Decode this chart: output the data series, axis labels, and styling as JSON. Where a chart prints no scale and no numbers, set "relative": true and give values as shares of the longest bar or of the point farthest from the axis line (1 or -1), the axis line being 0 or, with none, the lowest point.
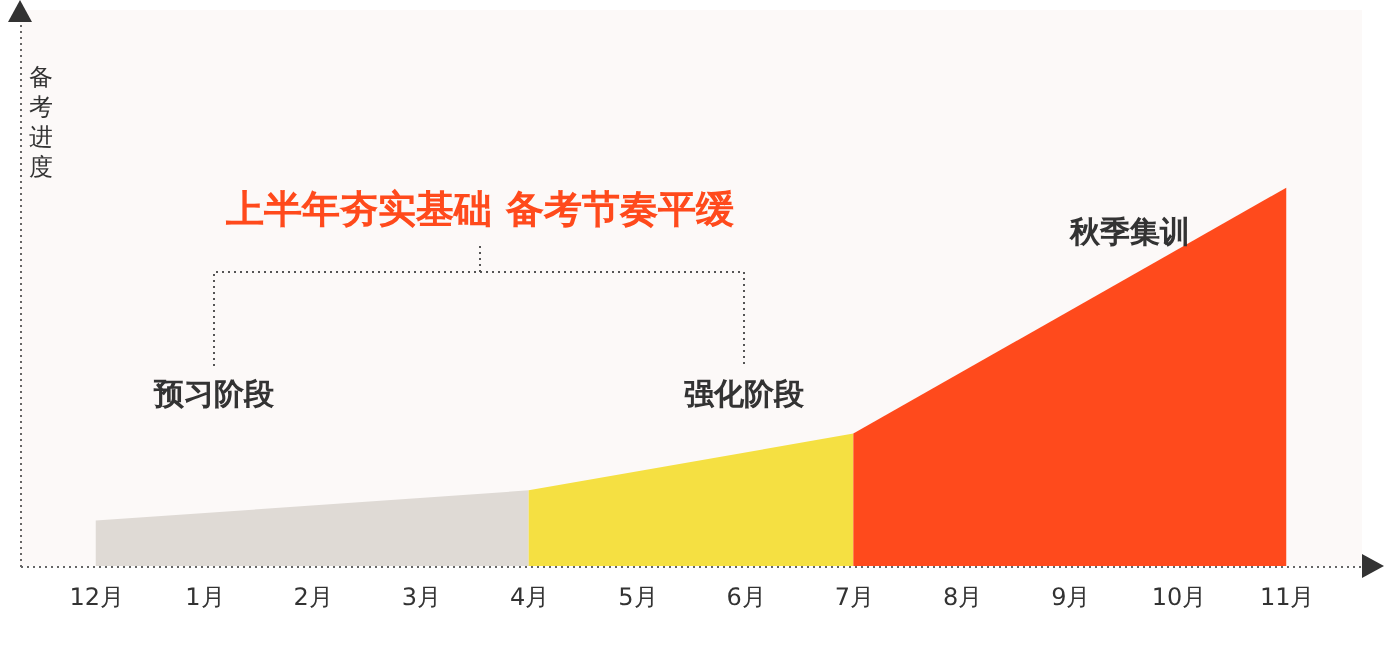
{
  "chart_data": {
    "type": "area",
    "title": "上半年夯实基础  备考节奏平缓",
    "ylabel": "备考进度",
    "relative": true,
    "categories": [
      "12月",
      "1月",
      "2月",
      "3月",
      "4月",
      "5月",
      "6月",
      "7月",
      "8月",
      "9月",
      "10月",
      "11月"
    ],
    "series": [
      {
        "color": "#dfdad5",
        "values": [
          0.12,
          null,
          null,
          null,
          0.2,
          null,
          null,
          null,
          null,
          null,
          null,
          null
        ]
      },
      {
        "color": "#f5e042",
        "values": [
          null,
          null,
          null,
          null,
          0.2,
          null,
          null,
          0.35,
          null,
          null,
          null,
          null
        ]
      },
      {
        "color": "#ff4a1c",
        "values": [
          null,
          null,
          null,
          null,
          null,
          null,
          null,
          0.35,
          null,
          null,
          null,
          1
        ]
      }
    ],
    "annotations": [
      "预习阶段",
      "强化阶段",
      "秋季集训"
    ]
  }
}
